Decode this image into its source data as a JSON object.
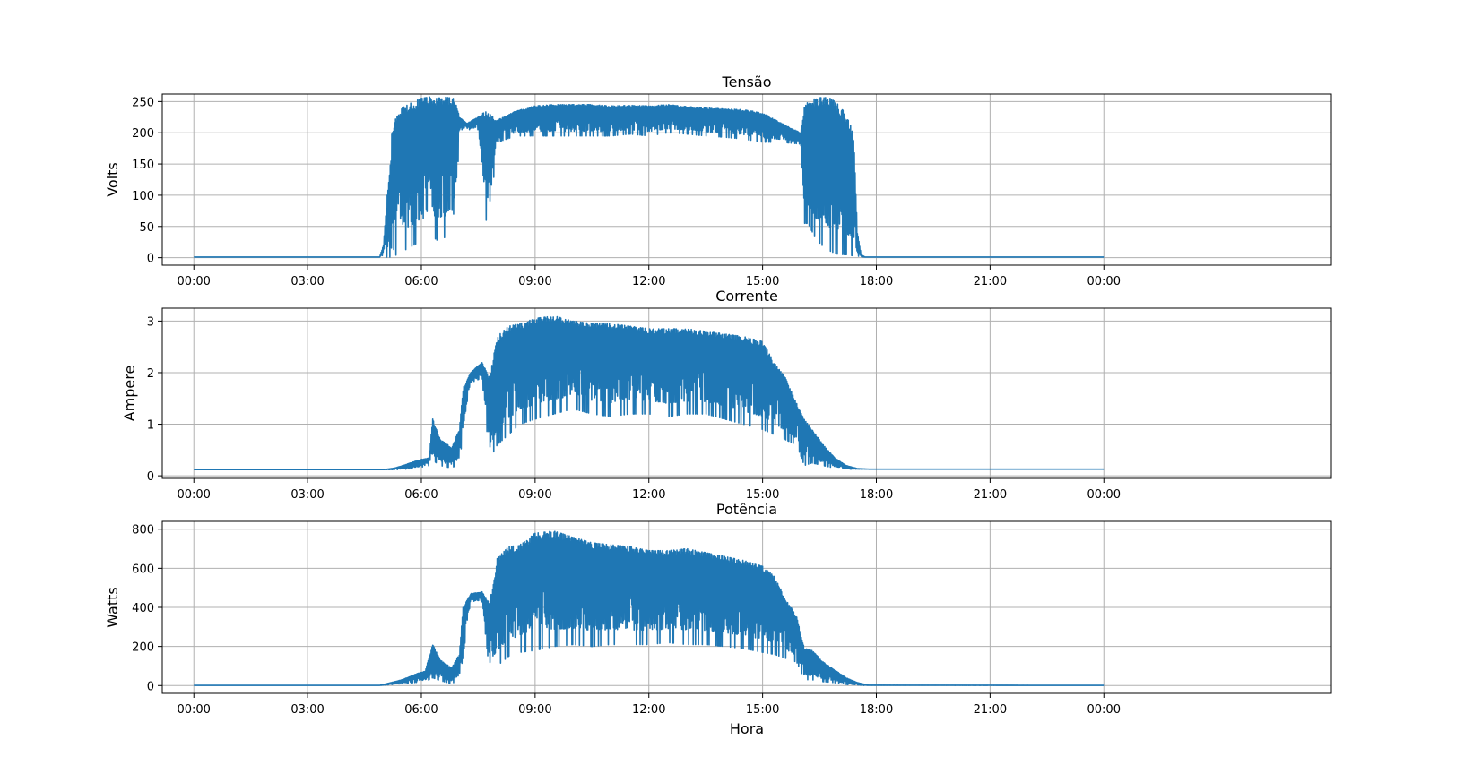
{
  "chart_data": [
    {
      "type": "line",
      "title": "Tensão",
      "xlabel": "",
      "ylabel": "Volts",
      "xlim": [
        -0.833,
        30.0
      ],
      "ylim": [
        -12,
        262
      ],
      "x_ticks": [
        0,
        3,
        6,
        9,
        12,
        15,
        18,
        21,
        24
      ],
      "x_tick_labels": [
        "00:00",
        "03:00",
        "06:00",
        "09:00",
        "12:00",
        "15:00",
        "18:00",
        "21:00",
        "00:00"
      ],
      "y_ticks": [
        0,
        50,
        100,
        150,
        200,
        250
      ],
      "y_tick_labels": [
        "0",
        "50",
        "100",
        "150",
        "200",
        "250"
      ],
      "grid": true,
      "color": "#1f77b4",
      "envelope_hours": [
        0,
        4.9,
        5.0,
        5.1,
        5.2,
        5.22,
        5.3,
        5.5,
        5.8,
        6.0,
        6.3,
        6.4,
        6.6,
        6.9,
        7.0,
        7.2,
        7.5,
        7.7,
        7.8,
        8.0,
        8.5,
        9.0,
        9.5,
        10.0,
        10.5,
        11.0,
        11.5,
        12.0,
        12.5,
        13.0,
        13.5,
        14.0,
        14.5,
        15.0,
        15.5,
        16.0,
        16.1,
        16.2,
        16.4,
        16.6,
        16.8,
        17.0,
        17.2,
        17.4,
        17.45,
        17.5,
        17.6,
        17.7,
        24
      ],
      "envelope_max": [
        1,
        1,
        20,
        100,
        160,
        200,
        220,
        240,
        250,
        255,
        258,
        255,
        257,
        255,
        225,
        215,
        225,
        235,
        230,
        220,
        235,
        243,
        245,
        245,
        245,
        243,
        244,
        243,
        245,
        242,
        240,
        238,
        237,
        232,
        215,
        200,
        240,
        250,
        255,
        257,
        255,
        245,
        230,
        200,
        120,
        40,
        5,
        1,
        1
      ],
      "envelope_min": [
        1,
        1,
        1,
        1,
        1,
        30,
        3,
        10,
        20,
        28,
        35,
        28,
        32,
        35,
        205,
        205,
        205,
        60,
        60,
        185,
        195,
        195,
        195,
        195,
        195,
        195,
        198,
        195,
        200,
        198,
        195,
        193,
        190,
        185,
        185,
        182,
        55,
        55,
        30,
        18,
        10,
        5,
        5,
        3,
        3,
        3,
        1,
        1,
        1
      ]
    },
    {
      "type": "line",
      "title": "Corrente",
      "xlabel": "",
      "ylabel": "Ampere",
      "xlim": [
        -0.833,
        30.0
      ],
      "ylim": [
        -0.05,
        3.25
      ],
      "x_ticks": [
        0,
        3,
        6,
        9,
        12,
        15,
        18,
        21,
        24
      ],
      "x_tick_labels": [
        "00:00",
        "03:00",
        "06:00",
        "09:00",
        "12:00",
        "15:00",
        "18:00",
        "21:00",
        "00:00"
      ],
      "y_ticks": [
        0,
        1,
        2,
        3
      ],
      "y_tick_labels": [
        "0",
        "1",
        "2",
        "3"
      ],
      "grid": true,
      "color": "#1f77b4",
      "envelope_hours": [
        0,
        5.0,
        5.3,
        5.6,
        5.9,
        6.2,
        6.3,
        6.5,
        6.8,
        7.0,
        7.1,
        7.3,
        7.6,
        7.8,
        8.0,
        8.3,
        8.6,
        9.0,
        9.5,
        10.0,
        10.5,
        11.0,
        11.5,
        12.0,
        12.5,
        13.0,
        13.5,
        14.0,
        14.5,
        15.0,
        15.3,
        15.6,
        15.9,
        16.1,
        16.3,
        16.6,
        16.9,
        17.2,
        17.5,
        17.8,
        24
      ],
      "envelope_max": [
        0.12,
        0.12,
        0.15,
        0.22,
        0.3,
        0.35,
        1.1,
        0.7,
        0.55,
        0.9,
        1.7,
        2.0,
        2.2,
        1.9,
        2.7,
        2.9,
        2.95,
        3.05,
        3.1,
        3.0,
        2.95,
        2.95,
        2.9,
        2.85,
        2.85,
        2.85,
        2.8,
        2.75,
        2.7,
        2.6,
        2.2,
        1.9,
        1.4,
        1.1,
        0.9,
        0.6,
        0.35,
        0.2,
        0.14,
        0.13,
        0.13
      ],
      "envelope_min": [
        0.12,
        0.12,
        0.12,
        0.13,
        0.15,
        0.2,
        0.3,
        0.2,
        0.15,
        0.25,
        0.8,
        1.8,
        1.9,
        0.3,
        0.6,
        0.8,
        1.0,
        1.1,
        1.2,
        1.3,
        1.2,
        1.15,
        1.2,
        1.2,
        1.15,
        1.2,
        1.2,
        1.1,
        1.0,
        0.9,
        0.8,
        0.7,
        0.6,
        0.2,
        0.25,
        0.2,
        0.15,
        0.13,
        0.13,
        0.13,
        0.13
      ]
    },
    {
      "type": "line",
      "title": "Potência",
      "xlabel": "Hora",
      "ylabel": "Watts",
      "xlim": [
        -0.833,
        30.0
      ],
      "ylim": [
        -40,
        840
      ],
      "x_ticks": [
        0,
        3,
        6,
        9,
        12,
        15,
        18,
        21,
        24
      ],
      "x_tick_labels": [
        "00:00",
        "03:00",
        "06:00",
        "09:00",
        "12:00",
        "15:00",
        "18:00",
        "21:00",
        "00:00"
      ],
      "y_ticks": [
        0,
        200,
        400,
        600,
        800
      ],
      "y_tick_labels": [
        "0",
        "200",
        "400",
        "600",
        "800"
      ],
      "grid": true,
      "color": "#1f77b4",
      "envelope_hours": [
        0,
        4.9,
        5.2,
        5.5,
        5.8,
        6.1,
        6.3,
        6.5,
        6.8,
        7.0,
        7.1,
        7.3,
        7.6,
        7.8,
        8.0,
        8.3,
        8.6,
        9.0,
        9.5,
        10.0,
        10.5,
        11.0,
        11.5,
        12.0,
        12.5,
        13.0,
        13.5,
        14.0,
        14.5,
        15.0,
        15.3,
        15.6,
        15.9,
        16.1,
        16.3,
        16.6,
        16.9,
        17.2,
        17.5,
        17.8,
        24
      ],
      "envelope_max": [
        1,
        1,
        15,
        30,
        55,
        75,
        210,
        130,
        90,
        160,
        400,
        470,
        480,
        420,
        650,
        710,
        720,
        780,
        790,
        760,
        730,
        720,
        710,
        690,
        690,
        700,
        680,
        660,
        640,
        610,
        560,
        450,
        350,
        190,
        180,
        120,
        80,
        40,
        15,
        2,
        1
      ],
      "envelope_min": [
        1,
        1,
        5,
        10,
        15,
        20,
        40,
        25,
        10,
        30,
        150,
        420,
        430,
        60,
        100,
        150,
        170,
        180,
        200,
        210,
        200,
        210,
        210,
        210,
        220,
        210,
        210,
        200,
        190,
        170,
        160,
        140,
        120,
        30,
        30,
        20,
        15,
        5,
        1,
        1,
        1
      ]
    }
  ]
}
